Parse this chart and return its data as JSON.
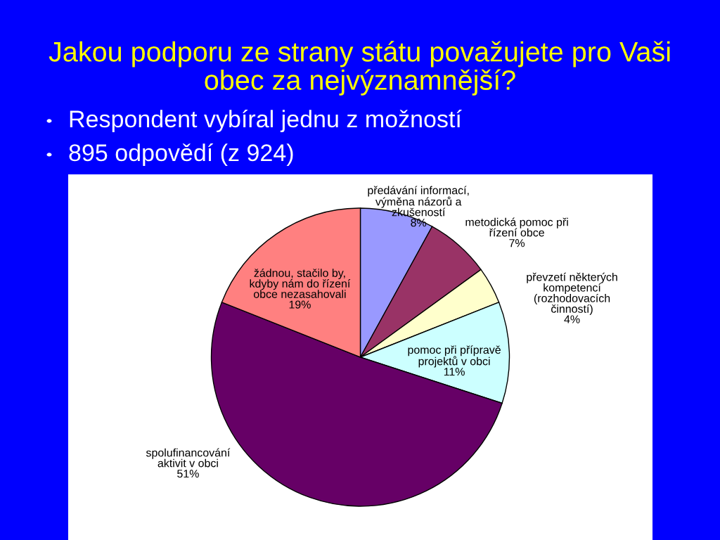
{
  "chart_data": {
    "type": "pie",
    "title": "Jakou podporu ze strany státu považujete pro Vaši\nobec za nejvýznamnější?",
    "annotations": [
      "Respondent vybíral jednu z možností",
      "895 odpovědí (z 924)"
    ],
    "categories": [
      "předávání informací,\nvýměna názorů a\nzkušeností",
      "metodická pomoc při\nřízení obce",
      "převzetí některých\nkompetencí\n(rozhodovacích\nčinností)",
      "pomoc při přípravě\nprojektů v obci",
      "spolufinancování\naktivit v obci",
      "žádnou, stačilo by,\nkdyby nám do řízení\nobce nezasahovali"
    ],
    "values": [
      8,
      7,
      4,
      11,
      51,
      19
    ],
    "colors": [
      "#9999ff",
      "#993366",
      "#ffffcc",
      "#ccffff",
      "#660066",
      "#ff8080"
    ],
    "value_labels": [
      "8%",
      "7%",
      "4%",
      "11%",
      "51%",
      "19%"
    ]
  }
}
